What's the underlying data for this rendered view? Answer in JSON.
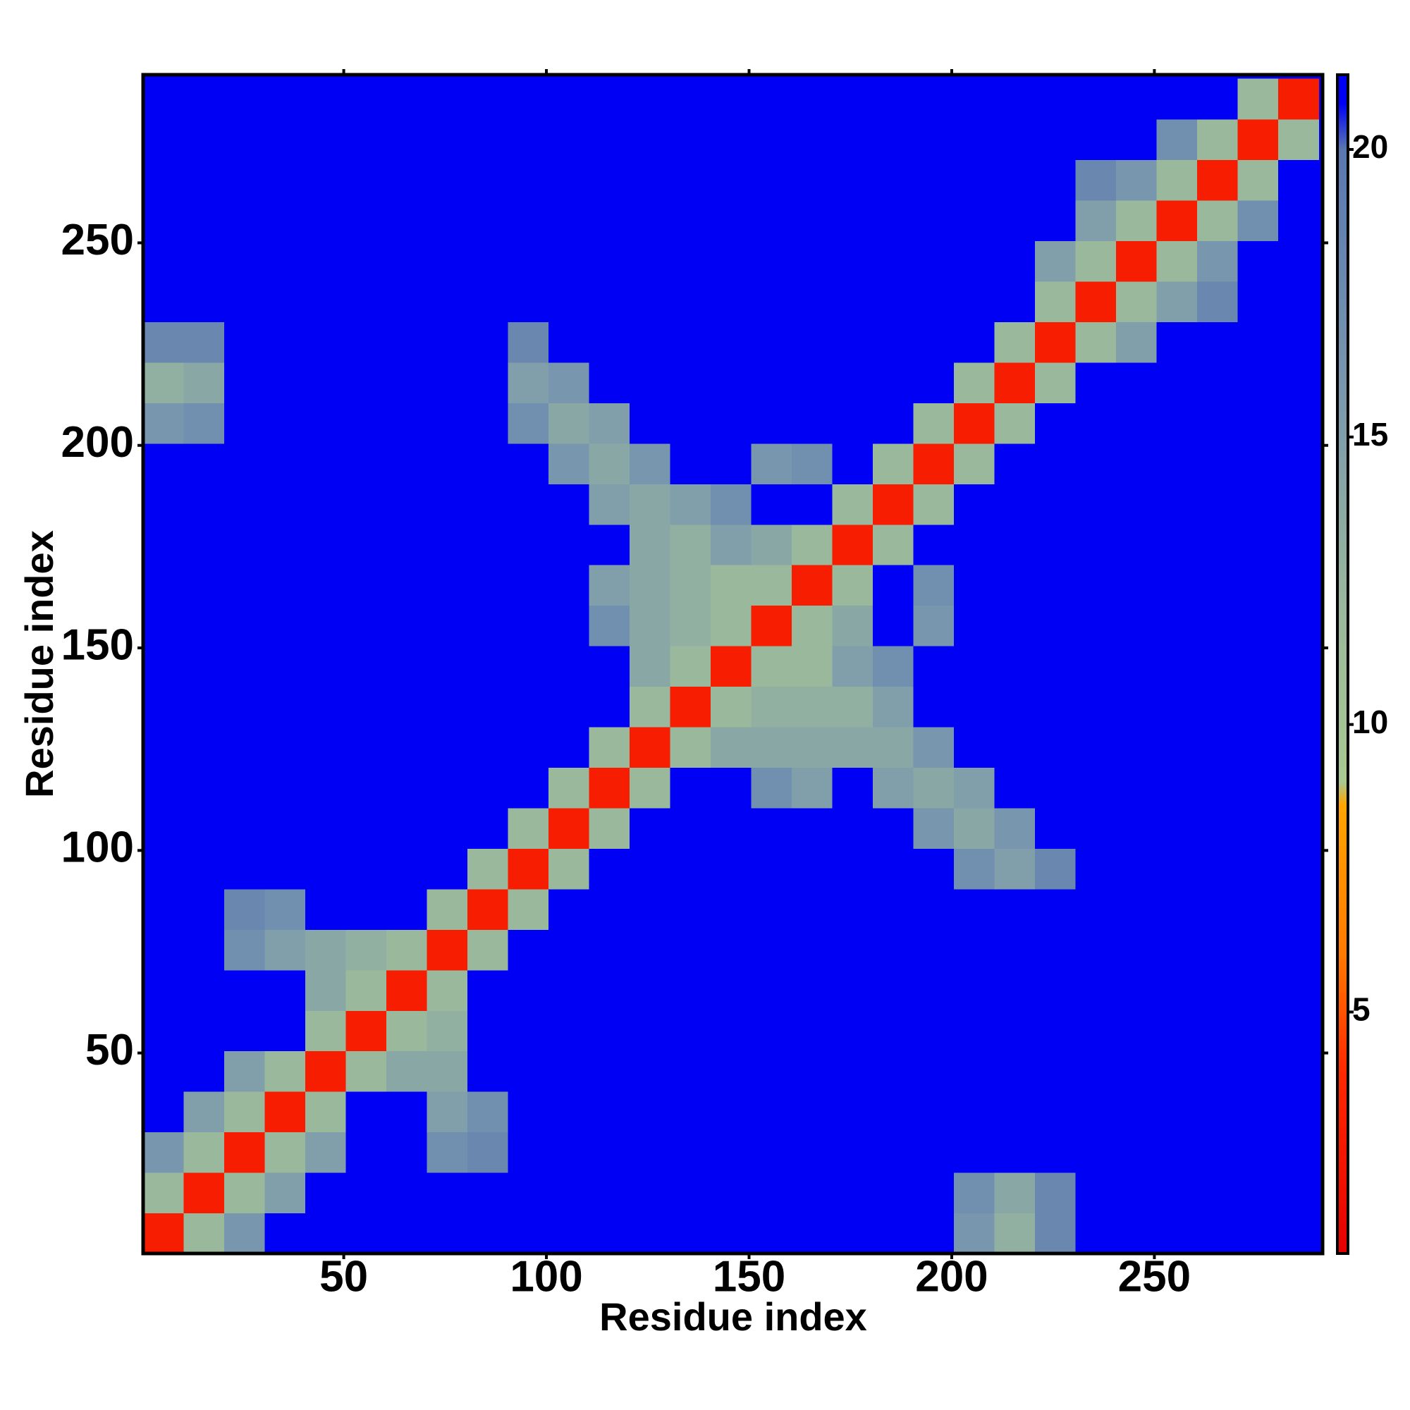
{
  "chart_data": {
    "type": "heatmap",
    "xlabel": "Residue index",
    "ylabel": "Residue index",
    "bins": [
      0.5,
      10.5,
      20.5,
      30.5,
      40.5,
      50.5,
      60.5,
      70.5,
      80.5,
      90.5,
      100.5,
      110.5,
      120.5,
      130.5,
      140.5,
      150.5,
      160.5,
      170.5,
      180.5,
      190.5,
      200.5,
      210.5,
      220.5,
      230.5,
      240.5,
      250.5,
      260.5,
      270.5,
      280.5,
      290.5
    ],
    "z": [
      [
        3,
        12,
        16,
        21,
        21,
        21,
        21,
        21,
        21,
        21,
        21,
        21,
        21,
        21,
        21,
        21,
        21,
        21,
        21,
        21,
        16,
        13,
        18,
        21,
        21,
        21,
        21,
        21,
        21
      ],
      [
        12,
        3,
        12,
        15,
        21,
        21,
        21,
        21,
        21,
        21,
        21,
        21,
        21,
        21,
        21,
        21,
        21,
        21,
        21,
        21,
        17,
        14,
        18,
        21,
        21,
        21,
        21,
        21,
        21
      ],
      [
        16,
        12,
        3,
        12,
        15,
        21,
        21,
        17,
        18,
        21,
        21,
        21,
        21,
        21,
        21,
        21,
        21,
        21,
        21,
        21,
        21,
        21,
        21,
        21,
        21,
        21,
        21,
        21,
        21
      ],
      [
        21,
        15,
        12,
        3,
        12,
        21,
        21,
        15,
        17,
        21,
        21,
        21,
        21,
        21,
        21,
        21,
        21,
        21,
        21,
        21,
        21,
        21,
        21,
        21,
        21,
        21,
        21,
        21,
        21
      ],
      [
        21,
        21,
        15,
        12,
        3,
        12,
        14,
        14,
        21,
        21,
        21,
        21,
        21,
        21,
        21,
        21,
        21,
        21,
        21,
        21,
        21,
        21,
        21,
        21,
        21,
        21,
        21,
        21,
        21
      ],
      [
        21,
        21,
        21,
        21,
        12,
        3,
        12,
        13,
        21,
        21,
        21,
        21,
        21,
        21,
        21,
        21,
        21,
        21,
        21,
        21,
        21,
        21,
        21,
        21,
        21,
        21,
        21,
        21,
        21
      ],
      [
        21,
        21,
        21,
        21,
        14,
        12,
        3,
        12,
        21,
        21,
        21,
        21,
        21,
        21,
        21,
        21,
        21,
        21,
        21,
        21,
        21,
        21,
        21,
        21,
        21,
        21,
        21,
        21,
        21
      ],
      [
        21,
        21,
        17,
        15,
        14,
        13,
        12,
        3,
        12,
        21,
        21,
        21,
        21,
        21,
        21,
        21,
        21,
        21,
        21,
        21,
        21,
        21,
        21,
        21,
        21,
        21,
        21,
        21,
        21
      ],
      [
        21,
        21,
        18,
        17,
        21,
        21,
        21,
        12,
        3,
        12,
        21,
        21,
        21,
        21,
        21,
        21,
        21,
        21,
        21,
        21,
        21,
        21,
        21,
        21,
        21,
        21,
        21,
        21,
        21
      ],
      [
        21,
        21,
        21,
        21,
        21,
        21,
        21,
        21,
        12,
        3,
        12,
        21,
        21,
        21,
        21,
        21,
        21,
        21,
        21,
        21,
        17,
        15,
        18,
        21,
        21,
        21,
        21,
        21,
        21
      ],
      [
        21,
        21,
        21,
        21,
        21,
        21,
        21,
        21,
        21,
        12,
        3,
        12,
        21,
        21,
        21,
        21,
        21,
        21,
        21,
        16,
        14,
        16,
        21,
        21,
        21,
        21,
        21,
        21,
        21
      ],
      [
        21,
        21,
        21,
        21,
        21,
        21,
        21,
        21,
        21,
        21,
        12,
        3,
        12,
        21,
        21,
        17,
        15,
        21,
        15,
        14,
        15,
        21,
        21,
        21,
        21,
        21,
        21,
        21,
        21
      ],
      [
        21,
        21,
        21,
        21,
        21,
        21,
        21,
        21,
        21,
        21,
        21,
        12,
        3,
        12,
        14,
        14,
        14,
        14,
        14,
        16,
        21,
        21,
        21,
        21,
        21,
        21,
        21,
        21,
        21
      ],
      [
        21,
        21,
        21,
        21,
        21,
        21,
        21,
        21,
        21,
        21,
        21,
        21,
        12,
        3,
        12,
        13,
        13,
        13,
        15,
        21,
        21,
        21,
        21,
        21,
        21,
        21,
        21,
        21,
        21
      ],
      [
        21,
        21,
        21,
        21,
        21,
        21,
        21,
        21,
        21,
        21,
        21,
        21,
        14,
        12,
        3,
        12,
        12,
        15,
        17,
        21,
        21,
        21,
        21,
        21,
        21,
        21,
        21,
        21,
        21
      ],
      [
        21,
        21,
        21,
        21,
        21,
        21,
        21,
        21,
        21,
        21,
        21,
        17,
        14,
        13,
        12,
        3,
        12,
        14,
        21,
        16,
        21,
        21,
        21,
        21,
        21,
        21,
        21,
        21,
        21
      ],
      [
        21,
        21,
        21,
        21,
        21,
        21,
        21,
        21,
        21,
        21,
        21,
        15,
        14,
        13,
        12,
        12,
        3,
        12,
        21,
        17,
        21,
        21,
        21,
        21,
        21,
        21,
        21,
        21,
        21
      ],
      [
        21,
        21,
        21,
        21,
        21,
        21,
        21,
        21,
        21,
        21,
        21,
        21,
        14,
        13,
        15,
        14,
        12,
        3,
        12,
        21,
        21,
        21,
        21,
        21,
        21,
        21,
        21,
        21,
        21
      ],
      [
        21,
        21,
        21,
        21,
        21,
        21,
        21,
        21,
        21,
        21,
        21,
        15,
        14,
        15,
        17,
        21,
        21,
        12,
        3,
        12,
        21,
        21,
        21,
        21,
        21,
        21,
        21,
        21,
        21
      ],
      [
        21,
        21,
        21,
        21,
        21,
        21,
        21,
        21,
        21,
        21,
        16,
        14,
        16,
        21,
        21,
        16,
        17,
        21,
        12,
        3,
        12,
        21,
        21,
        21,
        21,
        21,
        21,
        21,
        21
      ],
      [
        16,
        17,
        21,
        21,
        21,
        21,
        21,
        21,
        21,
        17,
        14,
        15,
        21,
        21,
        21,
        21,
        21,
        21,
        21,
        12,
        3,
        12,
        21,
        21,
        21,
        21,
        21,
        21,
        21
      ],
      [
        13,
        14,
        21,
        21,
        21,
        21,
        21,
        21,
        21,
        15,
        16,
        21,
        21,
        21,
        21,
        21,
        21,
        21,
        21,
        21,
        12,
        3,
        12,
        21,
        21,
        21,
        21,
        21,
        21
      ],
      [
        18,
        18,
        21,
        21,
        21,
        21,
        21,
        21,
        21,
        18,
        21,
        21,
        21,
        21,
        21,
        21,
        21,
        21,
        21,
        21,
        21,
        12,
        3,
        12,
        15,
        21,
        21,
        21,
        21
      ],
      [
        21,
        21,
        21,
        21,
        21,
        21,
        21,
        21,
        21,
        21,
        21,
        21,
        21,
        21,
        21,
        21,
        21,
        21,
        21,
        21,
        21,
        21,
        12,
        3,
        12,
        15,
        18,
        21,
        21
      ],
      [
        21,
        21,
        21,
        21,
        21,
        21,
        21,
        21,
        21,
        21,
        21,
        21,
        21,
        21,
        21,
        21,
        21,
        21,
        21,
        21,
        21,
        21,
        15,
        12,
        3,
        12,
        16,
        21,
        21
      ],
      [
        21,
        21,
        21,
        21,
        21,
        21,
        21,
        21,
        21,
        21,
        21,
        21,
        21,
        21,
        21,
        21,
        21,
        21,
        21,
        21,
        21,
        21,
        21,
        15,
        12,
        3,
        12,
        17,
        21
      ],
      [
        21,
        21,
        21,
        21,
        21,
        21,
        21,
        21,
        21,
        21,
        21,
        21,
        21,
        21,
        21,
        21,
        21,
        21,
        21,
        21,
        21,
        21,
        21,
        18,
        16,
        12,
        3,
        12,
        21
      ],
      [
        21,
        21,
        21,
        21,
        21,
        21,
        21,
        21,
        21,
        21,
        21,
        21,
        21,
        21,
        21,
        21,
        21,
        21,
        21,
        21,
        21,
        21,
        21,
        21,
        21,
        17,
        12,
        3,
        12
      ],
      [
        21,
        21,
        21,
        21,
        21,
        21,
        21,
        21,
        21,
        21,
        21,
        21,
        21,
        21,
        21,
        21,
        21,
        21,
        21,
        21,
        21,
        21,
        21,
        21,
        21,
        21,
        21,
        12,
        3
      ]
    ],
    "xlim": [
      0.5,
      291.5
    ],
    "ylim": [
      0.5,
      291.5
    ],
    "xticks": [
      50,
      100,
      150,
      200,
      250
    ],
    "yticks": [
      50,
      100,
      150,
      200,
      250
    ],
    "colorbar": {
      "lim": [
        0.8,
        21.3
      ],
      "ticks": [
        5,
        10,
        15,
        20
      ],
      "colorscale": [
        {
          "value": 0.8,
          "color": "#e60000"
        },
        {
          "value": 4,
          "color": "#ff2a00"
        },
        {
          "value": 6,
          "color": "#ff7a00"
        },
        {
          "value": 8.6,
          "color": "#ffa500"
        },
        {
          "value": 9,
          "color": "#a9c892"
        },
        {
          "value": 12,
          "color": "#9ab89c"
        },
        {
          "value": 16,
          "color": "#7896ae"
        },
        {
          "value": 20,
          "color": "#5a78b0"
        },
        {
          "value": 20.8,
          "color": "#0000f5"
        },
        {
          "value": 21.3,
          "color": "#0000f5"
        }
      ]
    }
  }
}
